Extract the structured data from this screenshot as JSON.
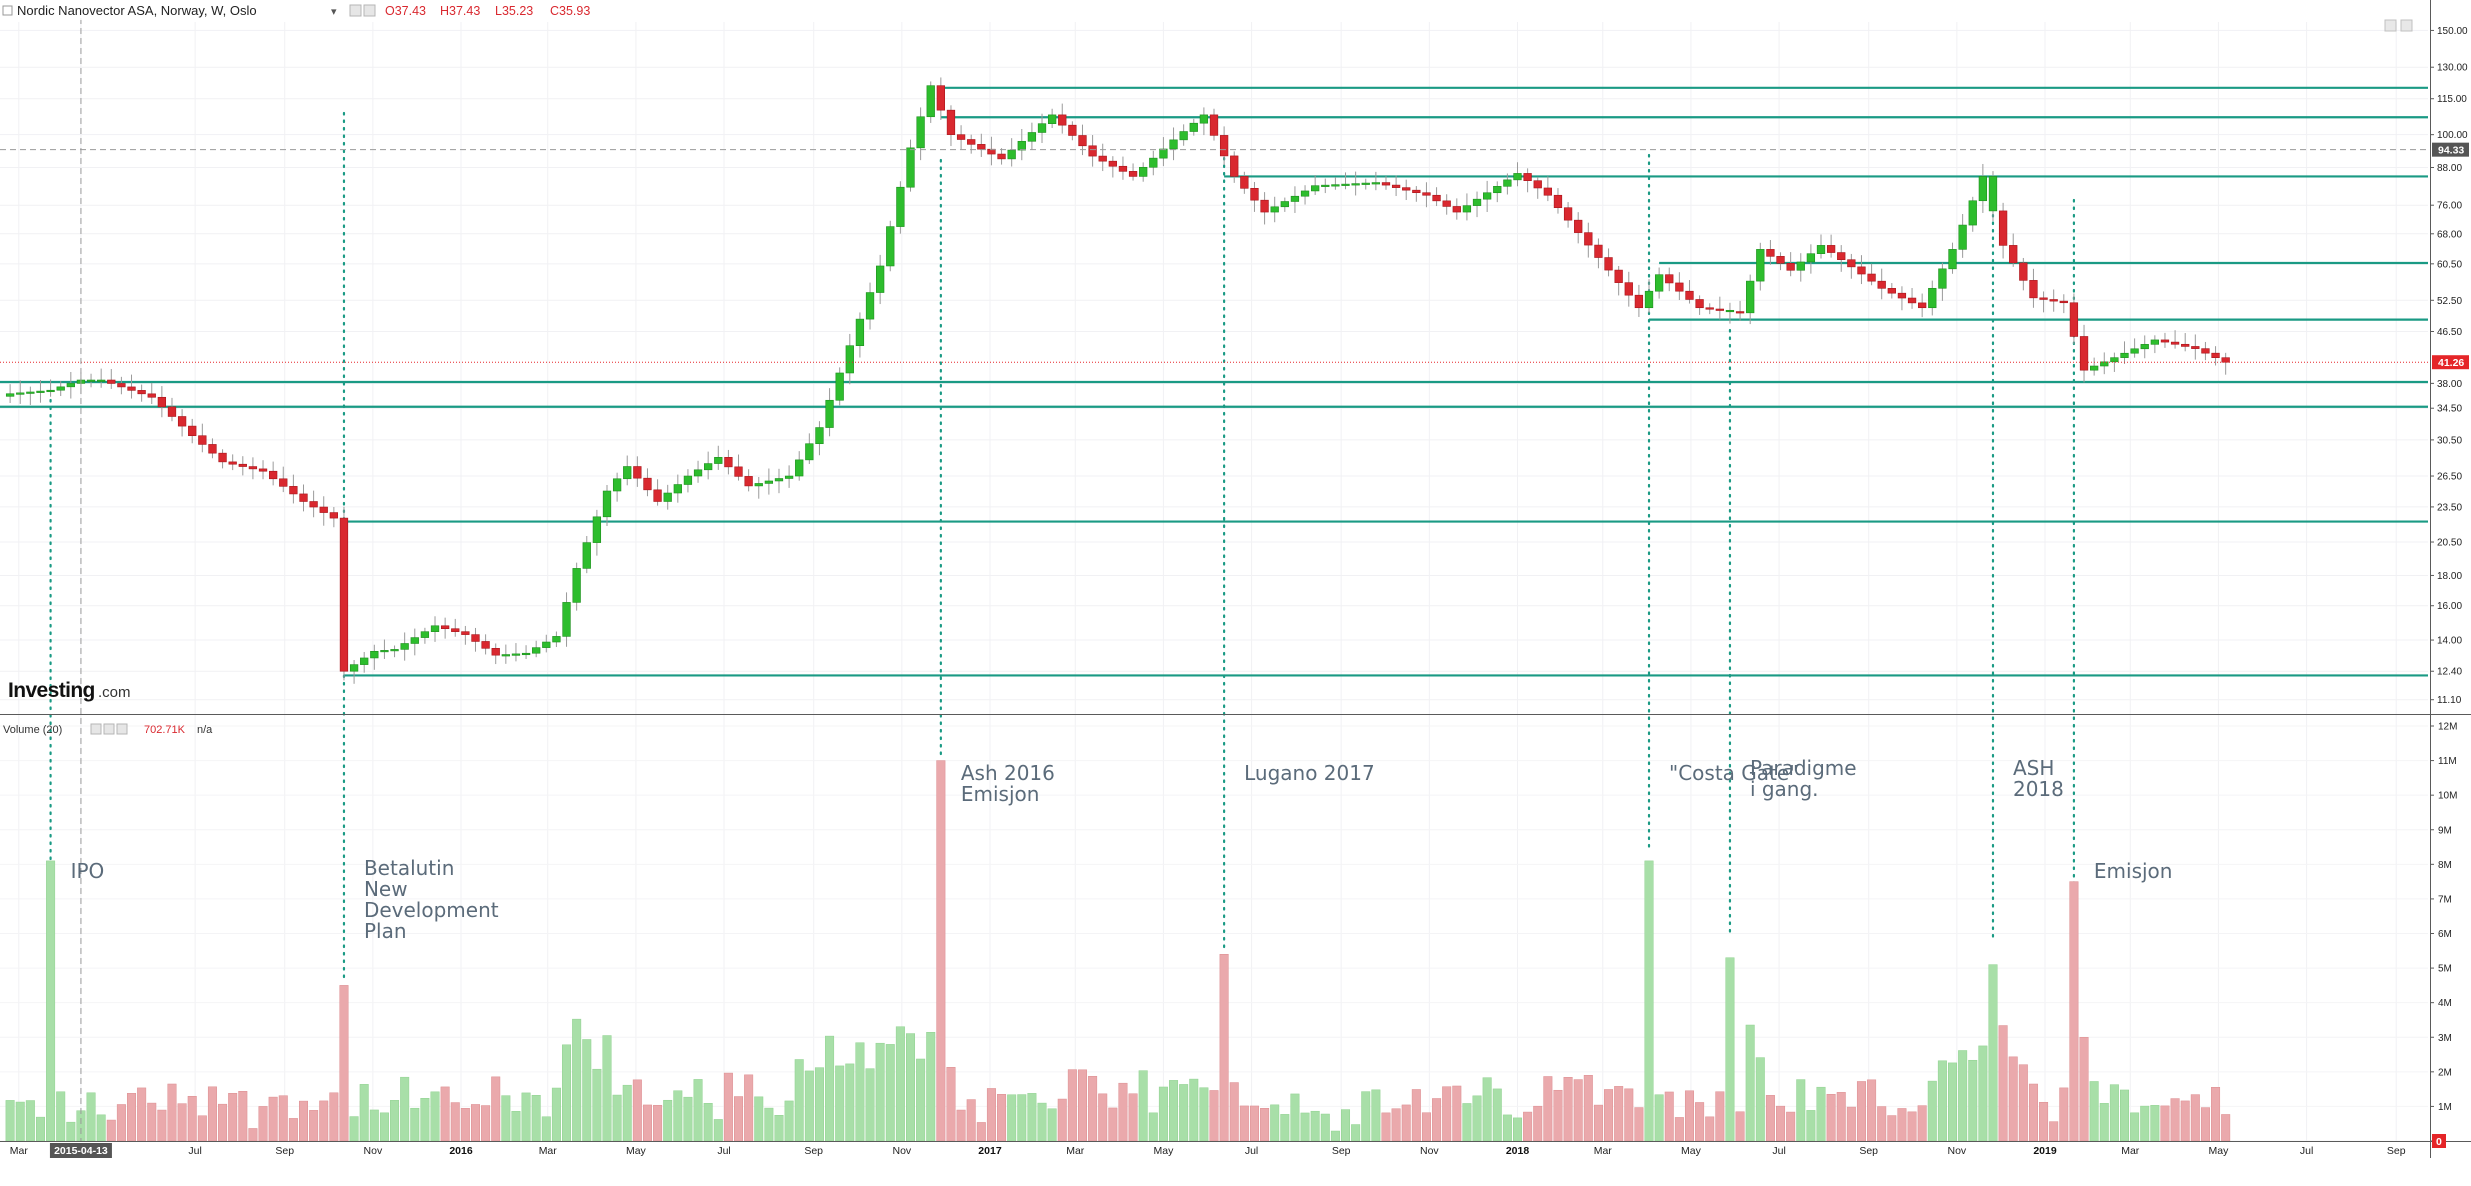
{
  "header": {
    "symbol_title": "Nordic Nanovector ASA, Norway, W, Oslo",
    "dropdown_glyph": "▾",
    "ohlc": [
      {
        "label": "O",
        "value": "37.43"
      },
      {
        "label": "H",
        "value": "37.43"
      },
      {
        "label": "L",
        "value": "35.23"
      },
      {
        "label": "C",
        "value": "35.93"
      }
    ],
    "icons": [
      "eye-icon",
      "settings-icon"
    ]
  },
  "volume_header": {
    "label": "Volume (20)",
    "value": "702.71K",
    "na": "n/a",
    "icons": [
      "eye-icon",
      "settings-icon",
      "close-icon"
    ]
  },
  "watermark": {
    "brand": "Investing",
    "suffix": ".com"
  },
  "price_axis": {
    "ticks": [
      "150.00",
      "130.00",
      "115.00",
      "100.00",
      "88.00",
      "76.00",
      "68.00",
      "60.50",
      "52.50",
      "46.50",
      "38.00",
      "34.50",
      "30.50",
      "26.50",
      "23.50",
      "20.50",
      "18.00",
      "16.00",
      "14.00",
      "12.40",
      "11.10"
    ],
    "badges": [
      {
        "text": "94.33",
        "bg": "#555555"
      },
      {
        "text": "41.26",
        "bg": "#e52528"
      }
    ]
  },
  "volume_axis": {
    "ticks": [
      "12M",
      "11M",
      "10M",
      "9M",
      "8M",
      "7M",
      "6M",
      "5M",
      "4M",
      "3M",
      "2M",
      "1M",
      "0"
    ]
  },
  "date_axis": {
    "ticks": [
      {
        "label": "Mar",
        "bold": false
      },
      {
        "label": "2015-04-13",
        "bold": true
      },
      {
        "label": "Jul",
        "bold": false
      },
      {
        "label": "Sep",
        "bold": false
      },
      {
        "label": "Nov",
        "bold": false
      },
      {
        "label": "2016",
        "bold": true
      },
      {
        "label": "Mar",
        "bold": false
      },
      {
        "label": "May",
        "bold": false
      },
      {
        "label": "Jul",
        "bold": false
      },
      {
        "label": "Sep",
        "bold": false
      },
      {
        "label": "Nov",
        "bold": false
      },
      {
        "label": "2017",
        "bold": true
      },
      {
        "label": "Mar",
        "bold": false
      },
      {
        "label": "May",
        "bold": false
      },
      {
        "label": "Jul",
        "bold": false
      },
      {
        "label": "Sep",
        "bold": false
      },
      {
        "label": "Nov",
        "bold": false
      },
      {
        "label": "2018",
        "bold": true
      },
      {
        "label": "Mar",
        "bold": false
      },
      {
        "label": "May",
        "bold": false
      },
      {
        "label": "Jul",
        "bold": false
      },
      {
        "label": "Sep",
        "bold": false
      },
      {
        "label": "Nov",
        "bold": false
      },
      {
        "label": "2019",
        "bold": true
      },
      {
        "label": "Mar",
        "bold": false
      },
      {
        "label": "May",
        "bold": false
      },
      {
        "label": "Jul",
        "bold": false
      },
      {
        "label": "Sep",
        "bold": false
      }
    ]
  },
  "annotations": [
    {
      "lines": [
        "IPO"
      ]
    },
    {
      "lines": [
        "Betalutin",
        "New",
        "Development",
        "Plan"
      ]
    },
    {
      "lines": [
        "Ash 2016",
        "Emisjon"
      ]
    },
    {
      "lines": [
        "Lugano 2017"
      ]
    },
    {
      "lines": [
        "\"Costa Gate\""
      ]
    },
    {
      "lines": [
        "Paradigme",
        "i gang."
      ]
    },
    {
      "lines": [
        "ASH",
        "2018"
      ]
    },
    {
      "lines": [
        "Emisjon"
      ]
    }
  ],
  "colors": {
    "up": "#2dbd2d",
    "down": "#d9282f",
    "up_volume": "#a8dfa8",
    "down_volume": "#eaa9ac",
    "level_line": "#1a9a84",
    "annotation_dots": "#1a9a84",
    "annotation_text": "#5b6b7a",
    "last_price": "#e52528"
  },
  "chart_data": {
    "type": "candlestick",
    "title": "Nordic Nanovector ASA, Norway, W, Oslo",
    "interval": "W",
    "y_scale": "log",
    "ylim": [
      10.5,
      155
    ],
    "volume_ylim": [
      0,
      12000000
    ],
    "crosshair": {
      "date": "2015-04-13",
      "price": 94.33
    },
    "last_price": 41.26,
    "levels": [
      120,
      107,
      85,
      60.7,
      48.7,
      38.2,
      34.7,
      22.2,
      12.2
    ],
    "volume_series": {
      "name": "Volume (20)",
      "last": "702.71K"
    },
    "segments": [
      {
        "points": [
          [
            "2015-02-23",
            36.5
          ],
          [
            "2015-03-23",
            37
          ],
          [
            "2015-04-13",
            38.5
          ],
          [
            "2015-04-27",
            38.5
          ],
          [
            "2015-06-01",
            36
          ],
          [
            "2015-06-29",
            31
          ],
          [
            "2015-07-20",
            28
          ],
          [
            "2015-08-17",
            27
          ],
          [
            "2015-09-14",
            24
          ],
          [
            "2015-10-05",
            22.5
          ],
          [
            "2015-10-12",
            12.4
          ],
          [
            "2015-11-02",
            13.4
          ],
          [
            "2015-11-16",
            13.5
          ],
          [
            "2015-12-14",
            14.8
          ],
          [
            "2016-01-04",
            14.3
          ],
          [
            "2016-01-25",
            13.2
          ],
          [
            "2016-02-15",
            13.3
          ],
          [
            "2016-03-07",
            14.2
          ],
          [
            "2016-03-21",
            18.5
          ],
          [
            "2016-04-11",
            25
          ],
          [
            "2016-04-25",
            27.5
          ],
          [
            "2016-05-16",
            24
          ],
          [
            "2016-06-06",
            26.5
          ],
          [
            "2016-06-27",
            28.5
          ],
          [
            "2016-07-18",
            25.5
          ],
          [
            "2016-08-15",
            26.5
          ],
          [
            "2016-09-05",
            32
          ],
          [
            "2016-09-26",
            44
          ],
          [
            "2016-10-17",
            60
          ],
          [
            "2016-11-07",
            95
          ],
          [
            "2016-11-21",
            121
          ],
          [
            "2016-12-05",
            100
          ],
          [
            "2017-01-09",
            91
          ],
          [
            "2017-02-13",
            108
          ],
          [
            "2017-03-13",
            92
          ],
          [
            "2017-04-10",
            85
          ],
          [
            "2017-05-08",
            98
          ],
          [
            "2017-05-29",
            108
          ],
          [
            "2017-06-19",
            85
          ],
          [
            "2017-07-10",
            74
          ],
          [
            "2017-08-14",
            82
          ],
          [
            "2017-09-25",
            83
          ],
          [
            "2017-10-30",
            79
          ],
          [
            "2017-11-20",
            74
          ],
          [
            "2018-01-01",
            86
          ],
          [
            "2018-01-22",
            79
          ],
          [
            "2018-02-26",
            62
          ],
          [
            "2018-03-26",
            51
          ],
          [
            "2018-04-09",
            58
          ],
          [
            "2018-05-07",
            51
          ],
          [
            "2018-06-04",
            50
          ],
          [
            "2018-06-18",
            64
          ],
          [
            "2018-07-09",
            59
          ],
          [
            "2018-07-30",
            65
          ],
          [
            "2018-09-10",
            55
          ],
          [
            "2018-10-08",
            51
          ],
          [
            "2018-10-29",
            64
          ],
          [
            "2018-11-19",
            85
          ],
          [
            "2018-12-03",
            65
          ],
          [
            "2018-12-24",
            53
          ],
          [
            "2019-01-14",
            52
          ],
          [
            "2019-01-28",
            40
          ],
          [
            "2019-02-18",
            42
          ],
          [
            "2019-03-18",
            45
          ],
          [
            "2019-04-15",
            43.5
          ],
          [
            "2019-05-06",
            41.26
          ]
        ]
      }
    ],
    "volume_spikes": [
      {
        "date": "2015-03-23",
        "value": 8100000,
        "up": true
      },
      {
        "date": "2015-10-12",
        "value": 4500000,
        "up": false
      },
      {
        "date": "2016-11-28",
        "value": 11000000,
        "up": false
      },
      {
        "date": "2017-06-12",
        "value": 5400000,
        "up": false
      },
      {
        "date": "2018-04-02",
        "value": 8100000,
        "up": true
      },
      {
        "date": "2018-05-28",
        "value": 5300000,
        "up": true
      },
      {
        "date": "2018-11-26",
        "value": 5100000,
        "up": true
      },
      {
        "date": "2019-01-21",
        "value": 7500000,
        "up": false
      }
    ],
    "annotation_dates": [
      "2015-03-23",
      "2015-10-12",
      "2016-11-28",
      "2017-06-12",
      "2018-04-02",
      "2018-05-28",
      "2018-11-26",
      "2019-01-21"
    ],
    "x_tick_dates": [
      "2015-03-01",
      "2015-04-13",
      "2015-07-01",
      "2015-09-01",
      "2015-11-01",
      "2016-01-01",
      "2016-03-01",
      "2016-05-01",
      "2016-07-01",
      "2016-09-01",
      "2016-11-01",
      "2017-01-01",
      "2017-03-01",
      "2017-05-01",
      "2017-07-01",
      "2017-09-01",
      "2017-11-01",
      "2018-01-01",
      "2018-03-01",
      "2018-05-01",
      "2018-07-01",
      "2018-09-01",
      "2018-11-01",
      "2019-01-01",
      "2019-03-01",
      "2019-05-01",
      "2019-07-01",
      "2019-09-01"
    ]
  }
}
